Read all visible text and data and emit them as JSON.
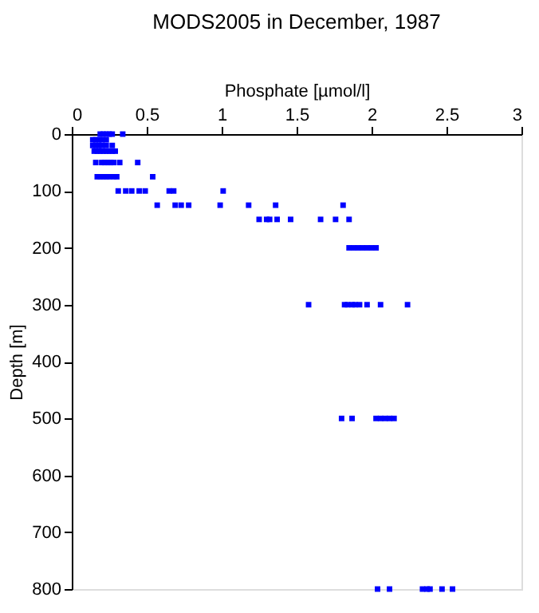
{
  "chart_data": {
    "type": "scatter",
    "title": "MODS2005 in December, 1987",
    "xlabel": "Phosphate [µmol/l]",
    "ylabel": "Depth [m]",
    "x": [
      0.19,
      0.21,
      0.23,
      0.25,
      0.27,
      0.34,
      0.14,
      0.16,
      0.18,
      0.2,
      0.23,
      0.14,
      0.16,
      0.18,
      0.2,
      0.23,
      0.27,
      0.15,
      0.17,
      0.19,
      0.21,
      0.23,
      0.25,
      0.27,
      0.29,
      0.16,
      0.2,
      0.22,
      0.24,
      0.26,
      0.28,
      0.32,
      0.44,
      0.17,
      0.19,
      0.21,
      0.23,
      0.25,
      0.28,
      0.3,
      0.54,
      0.31,
      0.36,
      0.4,
      0.45,
      0.49,
      0.65,
      0.68,
      1.01,
      0.57,
      0.69,
      0.73,
      0.78,
      0.99,
      1.18,
      1.36,
      1.81,
      1.25,
      1.3,
      1.32,
      1.37,
      1.46,
      1.66,
      1.76,
      1.85,
      1.85,
      1.88,
      1.91,
      1.94,
      1.97,
      2.0,
      2.03,
      1.58,
      1.82,
      1.84,
      1.87,
      1.89,
      1.92,
      1.97,
      2.06,
      2.24,
      1.8,
      1.87,
      2.03,
      2.06,
      2.09,
      2.12,
      2.15,
      2.04,
      2.12,
      2.34,
      2.37,
      2.39,
      2.47,
      2.54
    ],
    "values": [
      0,
      0,
      0,
      0,
      0,
      0,
      10,
      10,
      10,
      10,
      10,
      20,
      20,
      20,
      20,
      20,
      20,
      30,
      30,
      30,
      30,
      30,
      30,
      30,
      30,
      50,
      50,
      50,
      50,
      50,
      50,
      50,
      50,
      75,
      75,
      75,
      75,
      75,
      75,
      75,
      75,
      100,
      100,
      100,
      100,
      100,
      100,
      100,
      100,
      125,
      125,
      125,
      125,
      125,
      125,
      125,
      125,
      150,
      150,
      150,
      150,
      150,
      150,
      150,
      150,
      200,
      200,
      200,
      200,
      200,
      200,
      200,
      300,
      300,
      300,
      300,
      300,
      300,
      300,
      300,
      300,
      500,
      500,
      500,
      500,
      500,
      500,
      500,
      800,
      800,
      800,
      800,
      800,
      800,
      800
    ],
    "color": "#0000ff",
    "marker": "square",
    "xlim": [
      0,
      3
    ],
    "xticks": [
      0,
      0.5,
      1,
      1.5,
      2,
      2.5,
      3
    ],
    "ylim": [
      800,
      0
    ],
    "yticks": [
      0,
      100,
      200,
      300,
      400,
      500,
      600,
      700,
      800
    ],
    "grid": false
  }
}
